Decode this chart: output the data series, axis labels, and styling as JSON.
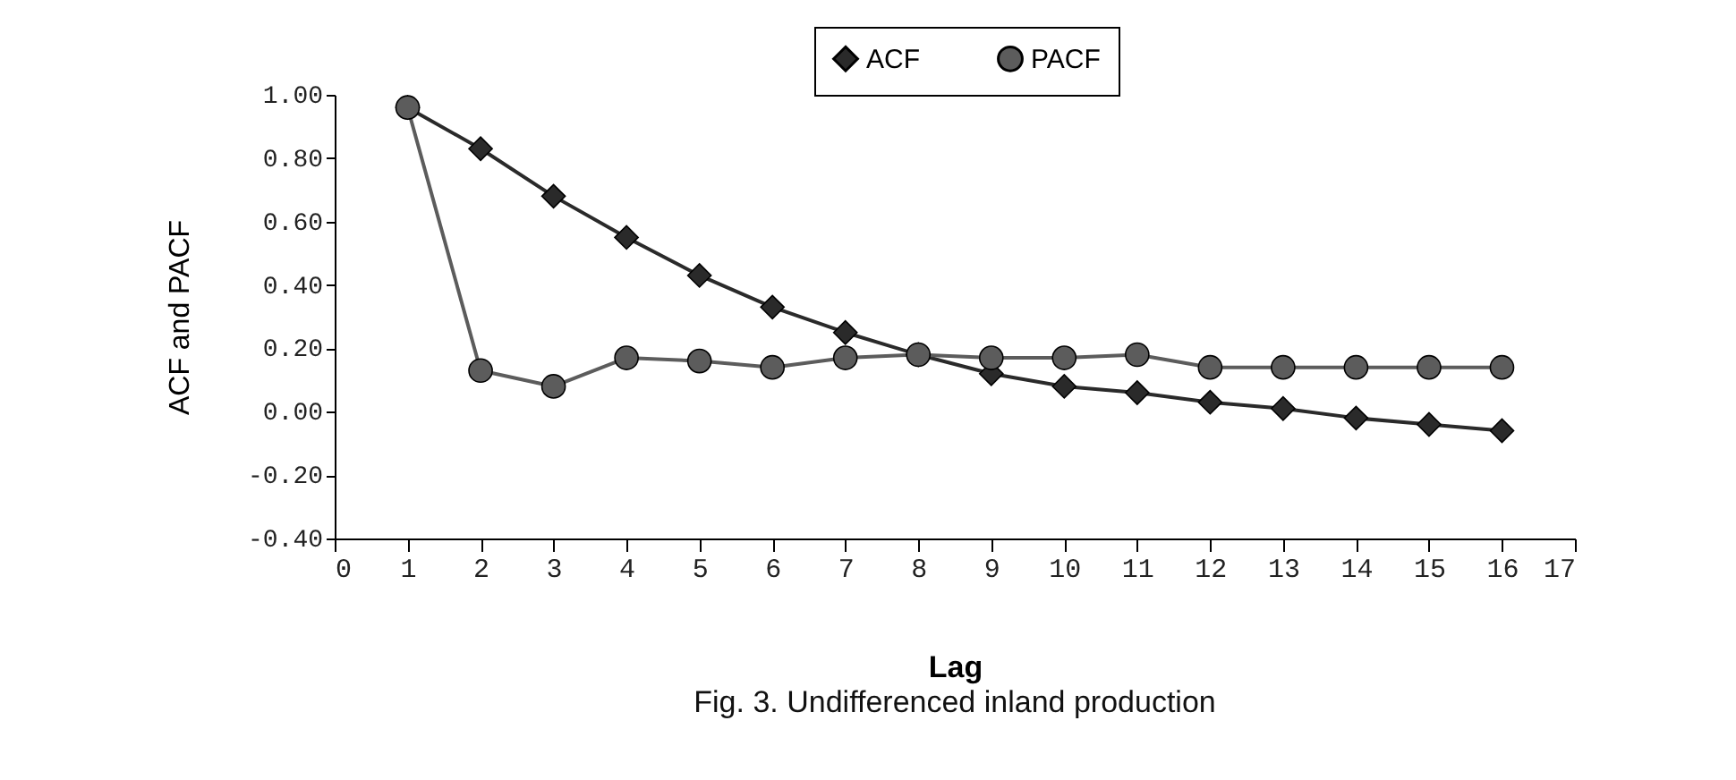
{
  "chart_data": {
    "type": "line",
    "xlabel": "Lag",
    "ylabel": "ACF and PACF",
    "annotations": [
      "Fig. 3. Undifferenced inland production"
    ],
    "x": [
      1,
      2,
      3,
      4,
      5,
      6,
      7,
      8,
      9,
      10,
      11,
      12,
      13,
      14,
      15,
      16
    ],
    "series": [
      {
        "name": "ACF",
        "color": "#2a2a2a",
        "marker": "diamond",
        "values": [
          0.96,
          0.83,
          0.68,
          0.55,
          0.43,
          0.33,
          0.25,
          0.18,
          0.12,
          0.08,
          0.06,
          0.03,
          0.01,
          -0.02,
          -0.04,
          -0.06
        ]
      },
      {
        "name": "PACF",
        "color": "#5c5c5c",
        "marker": "circle",
        "values": [
          0.96,
          0.13,
          0.08,
          0.17,
          0.16,
          0.14,
          0.17,
          0.18,
          0.17,
          0.17,
          0.18,
          0.14,
          0.14,
          0.14,
          0.14,
          0.14
        ]
      }
    ],
    "xlim": [
      0,
      17
    ],
    "xticks": [
      0,
      1,
      2,
      3,
      4,
      5,
      6,
      7,
      8,
      9,
      10,
      11,
      12,
      13,
      14,
      15,
      16,
      17
    ],
    "ylim": [
      -0.4,
      1
    ],
    "yticks": [
      {
        "value": 1,
        "label": "1.00"
      },
      {
        "value": 0.8,
        "label": "0.80"
      },
      {
        "value": 0.6,
        "label": "0.60"
      },
      {
        "value": 0.4,
        "label": "0.40"
      },
      {
        "value": 0.2,
        "label": "0.20"
      },
      {
        "value": 0,
        "label": "0.00"
      },
      {
        "value": -0.2,
        "label": "-0.20"
      },
      {
        "value": -0.4,
        "label": "-0.40"
      }
    ],
    "grid": false,
    "legend": "top right",
    "line_style": "solid"
  }
}
